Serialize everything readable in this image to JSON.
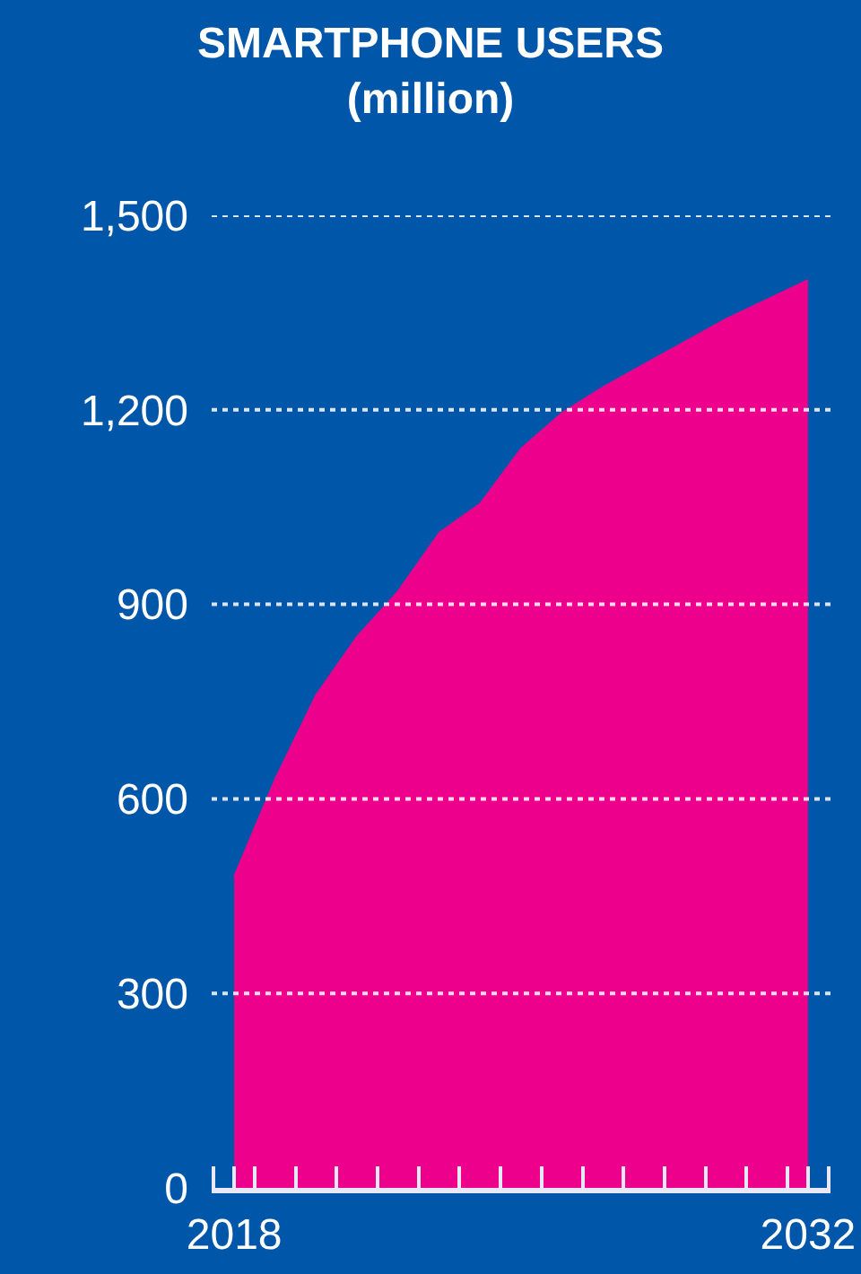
{
  "chart_data": {
    "type": "area",
    "title": "SMARTPHONE USERS",
    "subtitle": "(million)",
    "x": [
      2018,
      2019,
      2020,
      2021,
      2022,
      2023,
      2024,
      2025,
      2026,
      2027,
      2028,
      2029,
      2030,
      2031,
      2032
    ],
    "series": [
      {
        "color": "#ec008c",
        "values": [
          480,
          630,
          760,
          850,
          920,
          1010,
          1055,
          1140,
          1195,
          1235,
          1270,
          1305,
          1340,
          1370,
          1400
        ]
      }
    ],
    "xlim": [
      2017.45,
      2032.55
    ],
    "xticks": [
      {
        "value": 2017.5,
        "label": null
      },
      {
        "value": 2018,
        "label": "2018"
      },
      {
        "value": 2018.5,
        "label": null
      },
      {
        "value": 2019.5,
        "label": null
      },
      {
        "value": 2020.5,
        "label": null
      },
      {
        "value": 2021.5,
        "label": null
      },
      {
        "value": 2022.5,
        "label": null
      },
      {
        "value": 2023.5,
        "label": null
      },
      {
        "value": 2024.5,
        "label": null
      },
      {
        "value": 2025.5,
        "label": null
      },
      {
        "value": 2026.5,
        "label": null
      },
      {
        "value": 2027.5,
        "label": null
      },
      {
        "value": 2028.5,
        "label": null
      },
      {
        "value": 2029.5,
        "label": null
      },
      {
        "value": 2030.5,
        "label": null
      },
      {
        "value": 2031.5,
        "label": null
      },
      {
        "value": 2032,
        "label": "2032"
      },
      {
        "value": 2032.5,
        "label": null
      }
    ],
    "ylim": [
      0,
      1500
    ],
    "yticks": [
      0,
      {
        "value": 300,
        "label": "300"
      },
      {
        "value": 600,
        "label": "600"
      },
      {
        "value": 900,
        "label": "900"
      },
      {
        "value": 1200,
        "label": "1,200"
      },
      {
        "value": 1500,
        "label": "1,500"
      }
    ],
    "grid": "y"
  }
}
